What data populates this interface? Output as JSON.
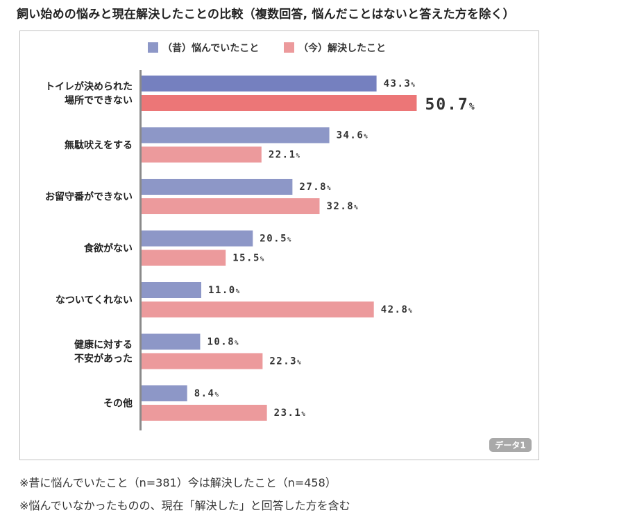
{
  "title": "飼い始めの悩みと現在解決したことの比較（複数回答, 悩んだことはないと答えた方を除く）",
  "notes": [
    "※昔に悩んでいたこと（n=381）今は解決したこと（n=458）",
    "※悩んでいなかったものの、現在「解決した」と回答した方を含む"
  ],
  "chart_data": {
    "type": "bar",
    "orientation": "horizontal",
    "title": "飼い始めの悩みと現在解決したことの比較（複数回答, 悩んだことはないと答えた方を除く）",
    "categories": [
      [
        "トイレが決められた",
        "場所でできない"
      ],
      [
        "無駄吠えをする"
      ],
      [
        "お留守番ができない"
      ],
      [
        "食欲がない"
      ],
      [
        "なついてくれない"
      ],
      [
        "健康に対する",
        "不安があった"
      ],
      [
        "その他"
      ]
    ],
    "series": [
      {
        "name": "（昔）悩んでいたこと",
        "color": "#8d97c7",
        "highlight_color": "#7580bf",
        "values": [
          43.3,
          34.6,
          27.8,
          20.5,
          11.0,
          10.8,
          8.4
        ]
      },
      {
        "name": "（今）解決したこと",
        "color": "#ec9a9c",
        "highlight_color": "#ec7677",
        "values": [
          50.7,
          22.1,
          32.8,
          15.5,
          42.8,
          22.3,
          23.1
        ]
      }
    ],
    "value_suffix": "%",
    "highlight_category_index": 0,
    "xlim": [
      0,
      60
    ],
    "grid": false,
    "legend_position": "top",
    "badge": "データ1"
  }
}
